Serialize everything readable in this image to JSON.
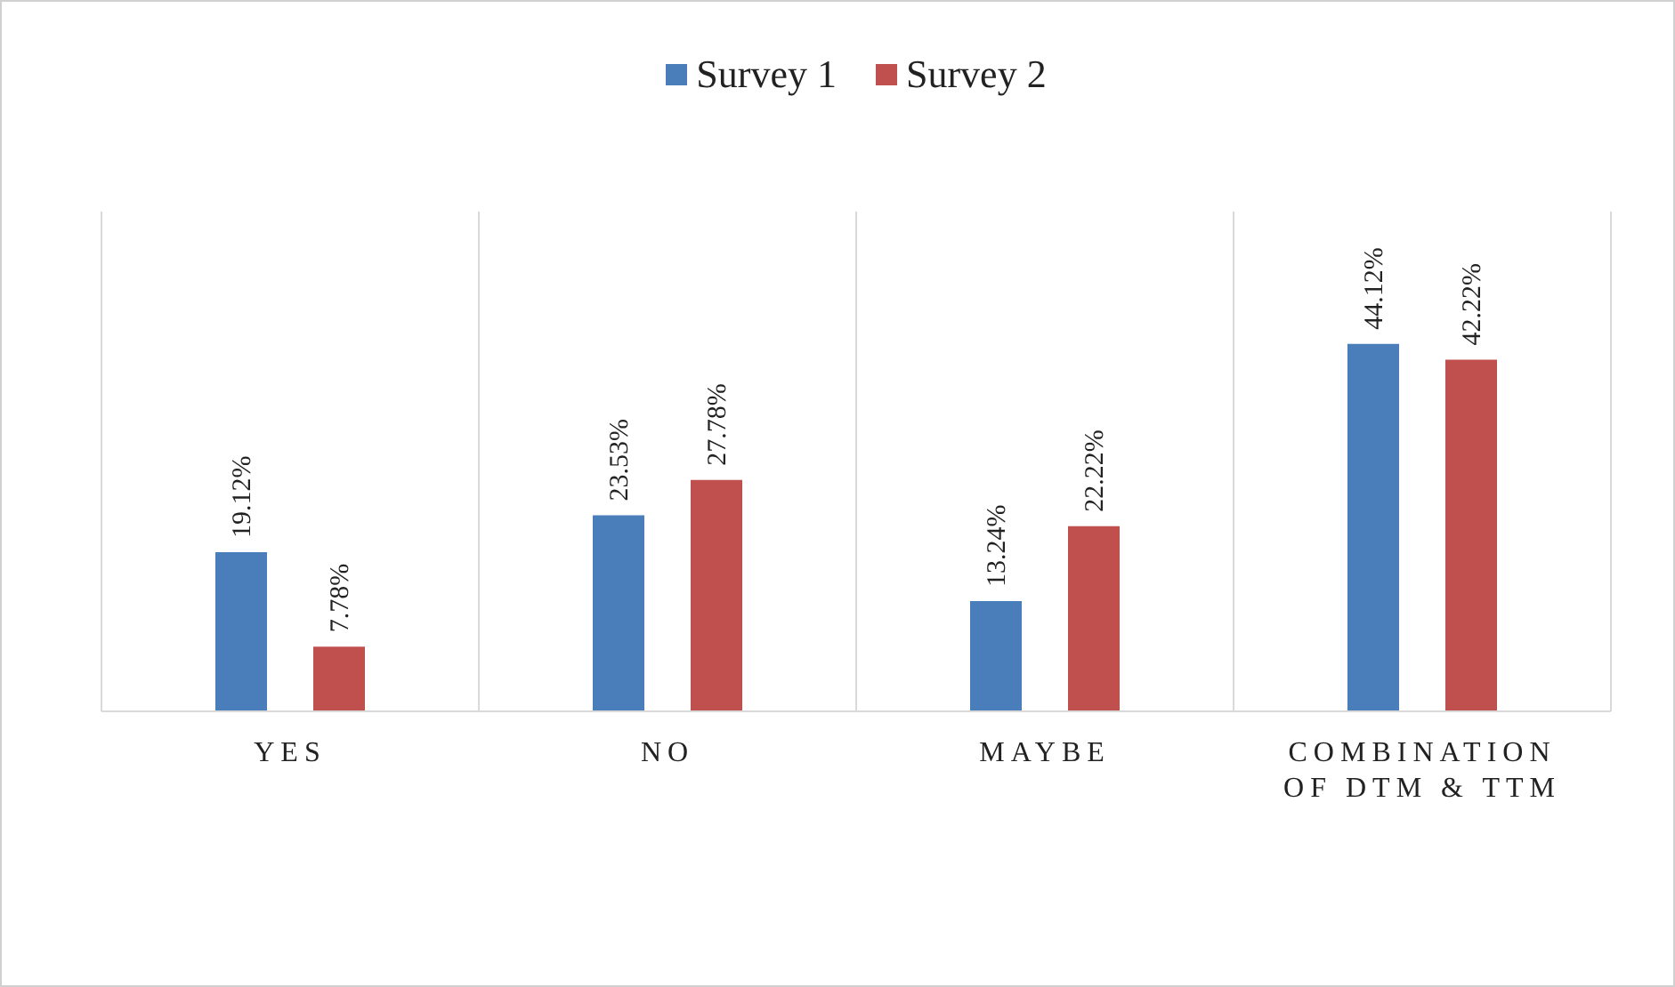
{
  "chart_data": {
    "type": "bar",
    "categories": [
      "YES",
      "NO",
      "MAYBE",
      "COMBINATION OF DTM & TTM"
    ],
    "series": [
      {
        "name": "Survey 1",
        "color": "#4a7ebb",
        "values": [
          19.12,
          23.53,
          13.24,
          44.12
        ],
        "value_labels": [
          "19.12%",
          "23.53%",
          "13.24%",
          "44.12%"
        ]
      },
      {
        "name": "Survey 2",
        "color": "#c0504d",
        "values": [
          7.78,
          27.78,
          22.22,
          42.22
        ],
        "value_labels": [
          "7.78%",
          "27.78%",
          "22.22%",
          "42.22%"
        ]
      }
    ],
    "grid": "x",
    "legend": "top",
    "tick_labels": "x"
  }
}
